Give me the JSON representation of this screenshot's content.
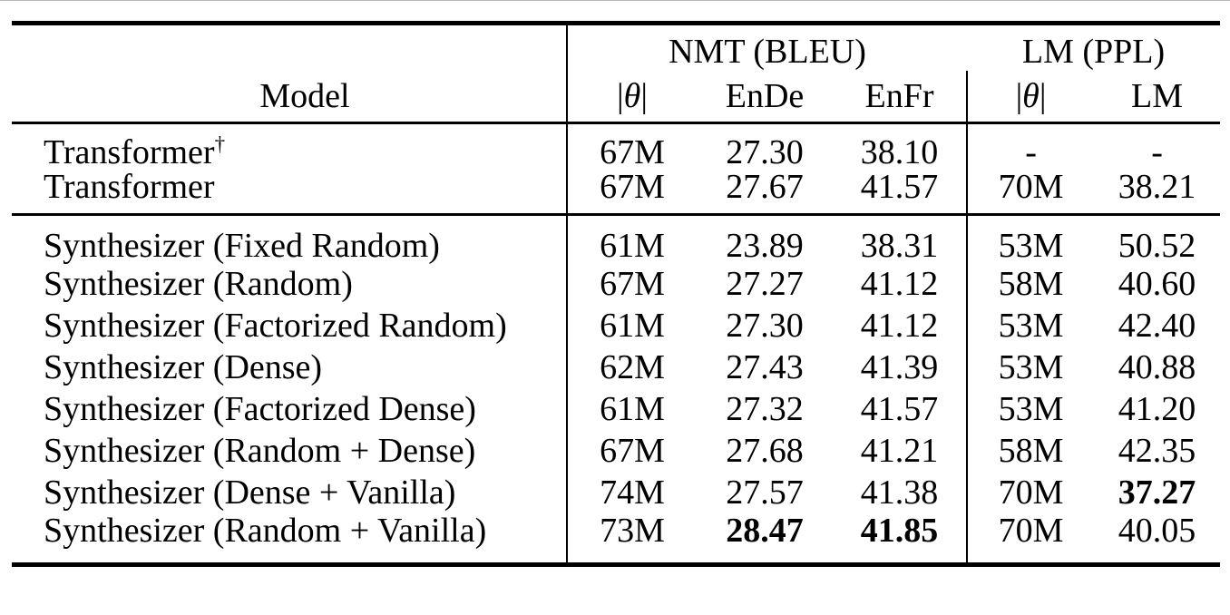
{
  "page": {
    "background": "#ffffff",
    "text_color": "#000000",
    "rule_color": "#000000"
  },
  "table": {
    "header": {
      "model_label": "Model",
      "groups": [
        {
          "label": "NMT (BLEU)"
        },
        {
          "label": "LM (PPL)"
        }
      ],
      "columns": [
        {
          "label": "|θ|",
          "math": true
        },
        {
          "label": "EnDe",
          "math": false
        },
        {
          "label": "EnFr",
          "math": false
        },
        {
          "label": "|θ|",
          "math": true
        },
        {
          "label": "LM",
          "math": false
        }
      ]
    },
    "blocks": [
      {
        "rows": [
          {
            "model": "Transformer",
            "sup": "†",
            "cells": [
              {
                "t": "67M"
              },
              {
                "t": "27.30"
              },
              {
                "t": "38.10"
              },
              {
                "t": "-"
              },
              {
                "t": "-"
              }
            ]
          },
          {
            "model": "Transformer",
            "cells": [
              {
                "t": "67M"
              },
              {
                "t": "27.67"
              },
              {
                "t": "41.57"
              },
              {
                "t": "70M"
              },
              {
                "t": "38.21"
              }
            ]
          }
        ]
      },
      {
        "rows": [
          {
            "model": "Synthesizer (Fixed Random)",
            "cells": [
              {
                "t": "61M"
              },
              {
                "t": "23.89"
              },
              {
                "t": "38.31"
              },
              {
                "t": "53M"
              },
              {
                "t": "50.52"
              }
            ]
          },
          {
            "model": "Synthesizer (Random)",
            "cells": [
              {
                "t": "67M"
              },
              {
                "t": "27.27"
              },
              {
                "t": "41.12"
              },
              {
                "t": "58M"
              },
              {
                "t": "40.60"
              }
            ]
          },
          {
            "model": "Synthesizer (Factorized Random)",
            "cells": [
              {
                "t": "61M"
              },
              {
                "t": "27.30"
              },
              {
                "t": "41.12"
              },
              {
                "t": "53M"
              },
              {
                "t": "42.40"
              }
            ]
          },
          {
            "model": "Synthesizer (Dense)",
            "cells": [
              {
                "t": "62M"
              },
              {
                "t": "27.43"
              },
              {
                "t": "41.39"
              },
              {
                "t": "53M"
              },
              {
                "t": "40.88"
              }
            ]
          },
          {
            "model": "Synthesizer (Factorized Dense)",
            "cells": [
              {
                "t": "61M"
              },
              {
                "t": "27.32"
              },
              {
                "t": "41.57"
              },
              {
                "t": "53M"
              },
              {
                "t": "41.20"
              }
            ]
          },
          {
            "model": "Synthesizer (Random + Dense)",
            "cells": [
              {
                "t": "67M"
              },
              {
                "t": "27.68"
              },
              {
                "t": "41.21"
              },
              {
                "t": "58M"
              },
              {
                "t": "42.35"
              }
            ]
          },
          {
            "model": "Synthesizer (Dense + Vanilla)",
            "cells": [
              {
                "t": "74M"
              },
              {
                "t": "27.57"
              },
              {
                "t": "41.38"
              },
              {
                "t": "70M"
              },
              {
                "t": "37.27",
                "bold": true
              }
            ]
          },
          {
            "model": "Synthesizer (Random + Vanilla)",
            "cells": [
              {
                "t": "73M"
              },
              {
                "t": "28.47",
                "bold": true
              },
              {
                "t": "41.85",
                "bold": true
              },
              {
                "t": "70M"
              },
              {
                "t": "40.05"
              }
            ]
          }
        ]
      }
    ]
  }
}
